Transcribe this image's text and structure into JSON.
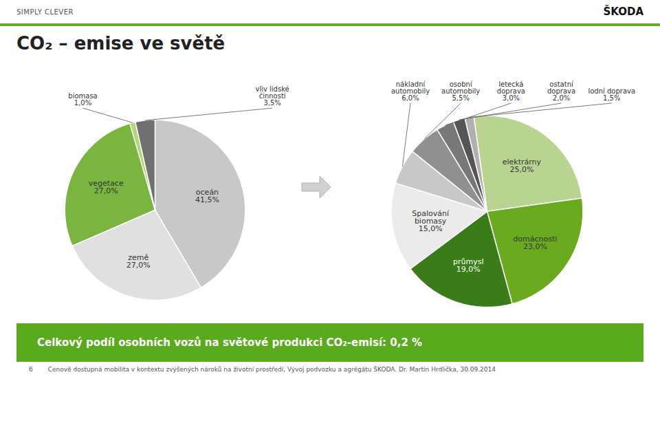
{
  "chart_data": [
    {
      "type": "pie",
      "title": "CO₂ – emise ve světě",
      "categories": [
        "oceán",
        "země",
        "vegetace",
        "biomasa",
        "vliv lidské\nčinnosti"
      ],
      "values": [
        41.5,
        27.0,
        27.0,
        1.0,
        3.5
      ],
      "value_labels": [
        "41,5%",
        "27,0%",
        "27,0%",
        "1,0%",
        "3,5%"
      ],
      "colors": [
        "#c8c8c8",
        "#e0e0e0",
        "#7ab540",
        "#b0d878",
        "#707070"
      ],
      "data_labels": true,
      "annotations": [
        "SIMPLY CLEVER",
        "ŠKODA",
        "Celkový podíl osobních vozů na světové produkci CO₂-emisí: 0,2 %",
        "6",
        "Cenově dostupná mobilita v kontextu zvýšených nároků na životní prostředí, Vývoj podvozku a agrégátu ŠKODA. Dr. Martin Hrdlička, 30.09.2014"
      ]
    },
    {
      "type": "pie",
      "categories": [
        "elektrárny",
        "domácnosti",
        "průmysl",
        "Spalování\nbiomasy",
        "nákladní\nautomobily",
        "osobní\nautomobily",
        "letecká\ndoprava",
        "ostatní\ndoprava",
        "lodní doprava"
      ],
      "values": [
        25.0,
        23.0,
        19.0,
        15.0,
        6.0,
        5.5,
        3.0,
        2.0,
        1.5
      ],
      "value_labels": [
        "25,0%",
        "23,0%",
        "19,0%",
        "15,0%",
        "6,0%",
        "5,5%",
        "3,0%",
        "2,0%",
        "1,5%"
      ],
      "colors": [
        "#b8d490",
        "#6aaa1e",
        "#3a7d18",
        "#ebebeb",
        "#c8c8c8",
        "#909090",
        "#787878",
        "#555555",
        "#b0b0b0"
      ],
      "data_labels": true
    }
  ]
}
